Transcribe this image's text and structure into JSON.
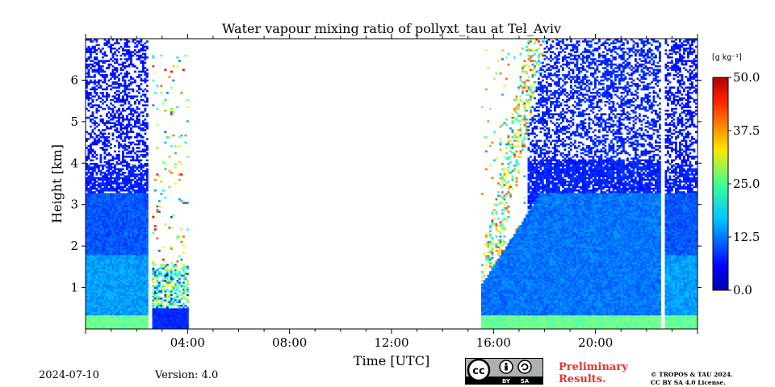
{
  "chart_data": {
    "type": "heatmap",
    "title": "Water vapour mixing ratio of pollyxt_tau at Tel_Aviv",
    "xlabel": "Time [UTC]",
    "ylabel": "Height [km]",
    "xlim_hours": [
      0,
      24
    ],
    "ylim_km": [
      0,
      7
    ],
    "x_tick_labels": [
      "04:00",
      "08:00",
      "12:00",
      "16:00",
      "20:00"
    ],
    "x_tick_hours": [
      4,
      8,
      12,
      16,
      20
    ],
    "y_ticks": [
      1,
      2,
      3,
      4,
      5,
      6
    ],
    "colorbar": {
      "label": "[g kg⁻¹]",
      "min": 0.0,
      "max": 50.0,
      "ticks": [
        "0.0",
        "12.5",
        "25.0",
        "37.5",
        "50.0"
      ],
      "colormap": "jet"
    },
    "segments": [
      {
        "start": "00:00",
        "end": "02:25",
        "description": "moist layer up to ~3.3 km, sparse signal above"
      },
      {
        "start": "02:35",
        "end": "04:00",
        "description": "noisy low signal below ~1.5 km"
      },
      {
        "start": "15:30",
        "end": "22:30",
        "description": "moist layer up to ~3.3 km after 17:30"
      },
      {
        "start": "22:40",
        "end": "24:00",
        "description": "moist layer up to ~3.3 km"
      }
    ],
    "grid": false
  },
  "footer": {
    "date": "2024-07-10",
    "version": "Version: 4.0",
    "preliminary": [
      "Preliminary",
      "Results."
    ],
    "copyright": [
      "© TROPOS & TAU 2024.",
      "CC BY SA 4.0 License."
    ],
    "badge": {
      "cc": "cc",
      "by": "BY",
      "sa": "SA"
    }
  }
}
